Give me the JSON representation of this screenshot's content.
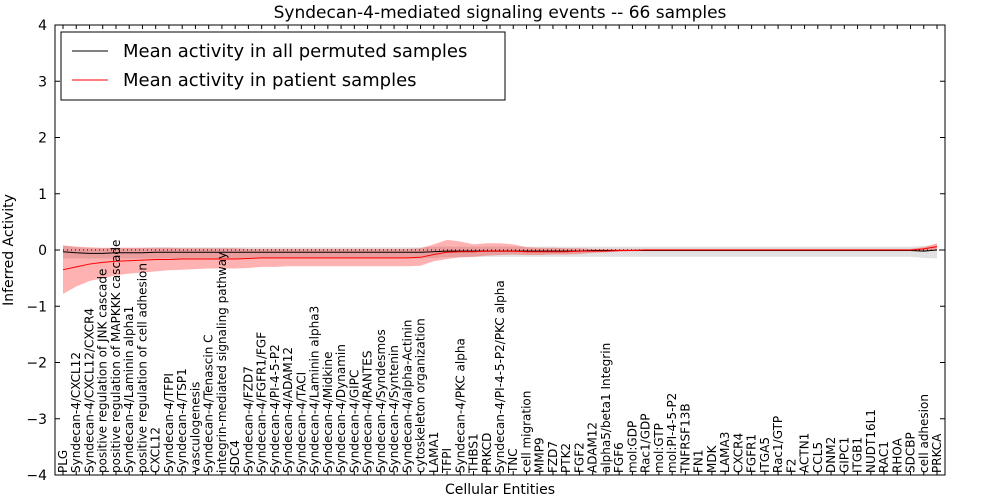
{
  "chart_data": {
    "type": "line",
    "title": "Syndecan-4-mediated signaling events -- 66 samples",
    "xlabel": "Cellular Entities",
    "ylabel": "Inferred Activity",
    "ylim": [
      -4,
      4
    ],
    "yticks": [
      -4,
      -3,
      -2,
      -1,
      0,
      1,
      2,
      3,
      4
    ],
    "grid": false,
    "legend_position": "top-left",
    "zero_line_style": "dotted",
    "categories": [
      "PLG",
      "Syndecan-4/CXCL12",
      "Syndecan-4/CXCL12/CXCR4",
      "positive regulation of JNK cascade",
      "positive regulation of MAPKKK cascade",
      "Syndecan-4/Laminin alpha1",
      "positive regulation of cell adhesion",
      "CXCL12",
      "Syndecan-4/TFPI",
      "Syndecan-4/TSP1",
      "vasculogenesis",
      "Syndecan-4/Tenascin C",
      "integrin-mediated signaling pathway",
      "SDC4",
      "Syndecan-4/FZD7",
      "Syndecan-4/FGFR1/FGF",
      "Syndecan-4/PI-4-5-P2",
      "Syndecan-4/ADAM12",
      "Syndecan-4/TACI",
      "Syndecan-4/Laminin alpha3",
      "Syndecan-4/Midkine",
      "Syndecan-4/Dynamin",
      "Syndecan-4/GIPC",
      "Syndecan-4/RANTES",
      "Syndecan-4/Syndesmos",
      "Syndecan-4/Syntenin",
      "Syndecan-4/alpha-Actinin",
      "cytoskeleton organization",
      "LAMA1",
      "TFPI",
      "Syndecan-4/PKC alpha",
      "THBS1",
      "PRKCD",
      "Syndecan-4/PI-4-5-P2/PKC alpha",
      "TNC",
      "cell migration",
      "MMP9",
      "FZD7",
      "PTK2",
      "FGF2",
      "ADAM12",
      "alpha5/beta1 Integrin",
      "FGF6",
      "mol:GDP",
      "Rac1/GDP",
      "mol:GTP",
      "mol:PI-4-5-P2",
      "TNFRSF13B",
      "FN1",
      "MDK",
      "LAMA3",
      "CXCR4",
      "FGFR1",
      "ITGA5",
      "Rac1/GTP",
      "F2",
      "ACTN1",
      "CCL5",
      "DNM2",
      "GIPC1",
      "ITGB1",
      "NUDT16L1",
      "RAC1",
      "RHOA",
      "SDCBP",
      "cell adhesion",
      "PRKCA"
    ],
    "series": [
      {
        "name": "Mean activity in all permuted samples",
        "color": "#000000",
        "band_color": "#c8c8c8",
        "values": [
          -0.03,
          -0.05,
          -0.06,
          -0.06,
          -0.05,
          -0.05,
          -0.05,
          -0.04,
          -0.04,
          -0.04,
          -0.04,
          -0.04,
          -0.04,
          -0.04,
          -0.04,
          -0.04,
          -0.04,
          -0.04,
          -0.04,
          -0.04,
          -0.04,
          -0.04,
          -0.04,
          -0.04,
          -0.04,
          -0.04,
          -0.04,
          -0.04,
          -0.03,
          -0.02,
          -0.02,
          -0.02,
          -0.02,
          -0.02,
          -0.02,
          -0.02,
          -0.02,
          -0.02,
          -0.02,
          -0.02,
          -0.01,
          -0.01,
          -0.01,
          -0.01,
          -0.01,
          -0.01,
          -0.01,
          -0.01,
          -0.01,
          -0.01,
          -0.01,
          -0.01,
          -0.01,
          -0.01,
          -0.01,
          -0.01,
          -0.01,
          -0.01,
          -0.01,
          -0.01,
          -0.01,
          -0.01,
          -0.01,
          -0.01,
          -0.01,
          -0.02,
          0.0
        ],
        "lower": [
          -0.15,
          -0.15,
          -0.15,
          -0.15,
          -0.15,
          -0.15,
          -0.15,
          -0.15,
          -0.15,
          -0.15,
          -0.15,
          -0.15,
          -0.15,
          -0.15,
          -0.15,
          -0.15,
          -0.15,
          -0.15,
          -0.15,
          -0.15,
          -0.15,
          -0.15,
          -0.15,
          -0.15,
          -0.15,
          -0.15,
          -0.15,
          -0.15,
          -0.14,
          -0.13,
          -0.13,
          -0.13,
          -0.12,
          -0.12,
          -0.12,
          -0.12,
          -0.12,
          -0.12,
          -0.12,
          -0.12,
          -0.12,
          -0.12,
          -0.12,
          -0.12,
          -0.12,
          -0.12,
          -0.12,
          -0.12,
          -0.12,
          -0.12,
          -0.12,
          -0.12,
          -0.12,
          -0.12,
          -0.12,
          -0.12,
          -0.12,
          -0.12,
          -0.12,
          -0.12,
          -0.12,
          -0.12,
          -0.12,
          -0.12,
          -0.12,
          -0.14,
          -0.15
        ],
        "upper": [
          0.08,
          0.05,
          0.03,
          0.03,
          0.04,
          0.04,
          0.04,
          0.05,
          0.05,
          0.05,
          0.05,
          0.05,
          0.05,
          0.05,
          0.05,
          0.05,
          0.05,
          0.05,
          0.05,
          0.05,
          0.05,
          0.05,
          0.05,
          0.05,
          0.05,
          0.05,
          0.05,
          0.05,
          0.06,
          0.06,
          0.06,
          0.06,
          0.06,
          0.06,
          0.06,
          0.06,
          0.06,
          0.06,
          0.06,
          0.06,
          0.06,
          0.06,
          0.06,
          0.06,
          0.06,
          0.06,
          0.06,
          0.06,
          0.06,
          0.06,
          0.06,
          0.06,
          0.06,
          0.06,
          0.06,
          0.06,
          0.06,
          0.06,
          0.06,
          0.06,
          0.06,
          0.06,
          0.06,
          0.06,
          0.06,
          0.07,
          0.08
        ]
      },
      {
        "name": "Mean activity in patient samples",
        "color": "#ff0000",
        "band_color": "#ff0000",
        "values": [
          -0.35,
          -0.3,
          -0.25,
          -0.22,
          -0.2,
          -0.19,
          -0.18,
          -0.17,
          -0.17,
          -0.16,
          -0.16,
          -0.16,
          -0.16,
          -0.16,
          -0.15,
          -0.14,
          -0.14,
          -0.14,
          -0.14,
          -0.14,
          -0.14,
          -0.14,
          -0.14,
          -0.14,
          -0.14,
          -0.14,
          -0.14,
          -0.13,
          -0.08,
          -0.04,
          -0.03,
          -0.03,
          -0.02,
          -0.02,
          -0.02,
          -0.03,
          -0.03,
          -0.03,
          -0.03,
          -0.02,
          -0.02,
          -0.02,
          -0.01,
          -0.01,
          0.0,
          0.0,
          0.0,
          0.0,
          0.0,
          0.0,
          0.0,
          0.0,
          0.0,
          0.0,
          0.0,
          0.0,
          0.0,
          0.0,
          0.0,
          0.0,
          0.0,
          0.0,
          0.0,
          0.0,
          0.0,
          0.02,
          0.06
        ],
        "lower": [
          -0.78,
          -0.65,
          -0.55,
          -0.5,
          -0.45,
          -0.42,
          -0.4,
          -0.38,
          -0.36,
          -0.35,
          -0.34,
          -0.33,
          -0.33,
          -0.33,
          -0.32,
          -0.3,
          -0.3,
          -0.29,
          -0.29,
          -0.29,
          -0.29,
          -0.29,
          -0.29,
          -0.29,
          -0.29,
          -0.29,
          -0.29,
          -0.28,
          -0.2,
          -0.16,
          -0.13,
          -0.12,
          -0.1,
          -0.09,
          -0.08,
          -0.09,
          -0.09,
          -0.08,
          -0.08,
          -0.07,
          -0.05,
          -0.04,
          -0.03,
          -0.02,
          -0.02,
          -0.02,
          -0.02,
          -0.02,
          -0.02,
          -0.02,
          -0.02,
          -0.02,
          -0.02,
          -0.02,
          -0.02,
          -0.02,
          -0.02,
          -0.02,
          -0.02,
          -0.02,
          -0.02,
          -0.02,
          -0.02,
          -0.02,
          -0.02,
          -0.01,
          0.01
        ],
        "upper": [
          0.08,
          0.06,
          0.05,
          0.04,
          0.04,
          0.04,
          0.04,
          0.04,
          0.04,
          0.03,
          0.03,
          0.03,
          0.03,
          0.03,
          0.02,
          0.02,
          0.02,
          0.02,
          0.02,
          0.02,
          0.02,
          0.02,
          0.02,
          0.02,
          0.02,
          0.02,
          0.02,
          0.03,
          0.1,
          0.18,
          0.15,
          0.1,
          0.12,
          0.12,
          0.1,
          0.05,
          0.04,
          0.04,
          0.03,
          0.03,
          0.02,
          0.02,
          0.02,
          0.02,
          0.02,
          0.02,
          0.02,
          0.02,
          0.02,
          0.02,
          0.02,
          0.02,
          0.02,
          0.02,
          0.02,
          0.02,
          0.02,
          0.02,
          0.02,
          0.02,
          0.02,
          0.02,
          0.02,
          0.02,
          0.02,
          0.05,
          0.12
        ]
      }
    ]
  }
}
